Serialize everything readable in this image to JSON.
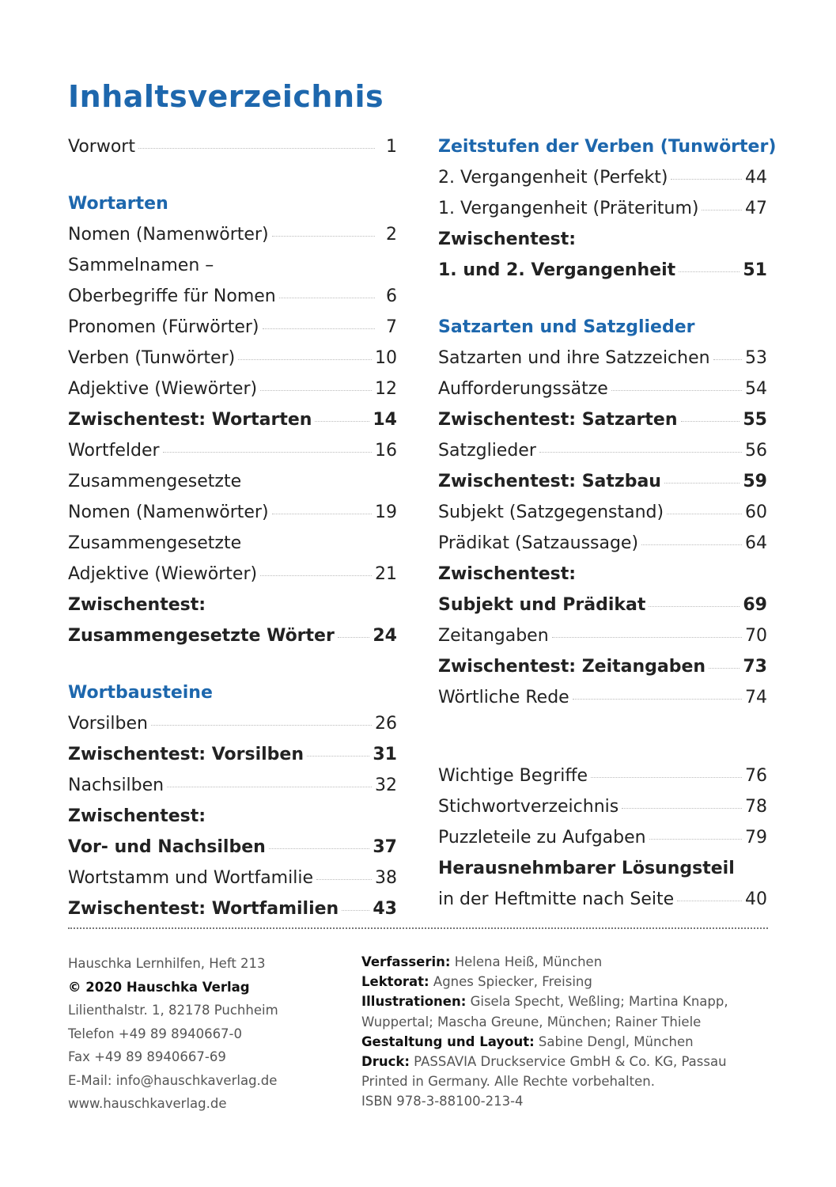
{
  "title": "Inhaltsverzeichnis",
  "columns": [
    [
      {
        "type": "entry",
        "lines": [
          "Vorwort"
        ],
        "page": "1"
      },
      {
        "type": "gap",
        "size": "small"
      },
      {
        "type": "heading",
        "text": "Wortarten"
      },
      {
        "type": "entry",
        "lines": [
          "Nomen (Namenwörter)"
        ],
        "page": "2"
      },
      {
        "type": "entry",
        "lines": [
          "Sammelnamen –",
          "Oberbegriffe für Nomen"
        ],
        "page": "6"
      },
      {
        "type": "entry",
        "lines": [
          "Pronomen (Fürwörter)"
        ],
        "page": "7"
      },
      {
        "type": "entry",
        "lines": [
          "Verben (Tunwörter)"
        ],
        "page": "10"
      },
      {
        "type": "entry",
        "lines": [
          "Adjektive (Wiewörter)"
        ],
        "page": "12"
      },
      {
        "type": "entry",
        "lines": [
          "Zwischentest: Wortarten"
        ],
        "page": "14",
        "bold": true
      },
      {
        "type": "entry",
        "lines": [
          "Wortfelder"
        ],
        "page": "16"
      },
      {
        "type": "entry",
        "lines": [
          "Zusammengesetzte",
          "Nomen (Namenwörter)"
        ],
        "page": "19"
      },
      {
        "type": "entry",
        "lines": [
          "Zusammengesetzte",
          "Adjektive (Wiewörter)"
        ],
        "page": "21"
      },
      {
        "type": "entry",
        "lines": [
          "Zwischentest:",
          "Zusammengesetzte Wörter"
        ],
        "page": "24",
        "bold": true
      },
      {
        "type": "gap",
        "size": "small"
      },
      {
        "type": "heading",
        "text": "Wortbausteine"
      },
      {
        "type": "entry",
        "lines": [
          "Vorsilben"
        ],
        "page": "26"
      },
      {
        "type": "entry",
        "lines": [
          "Zwischentest: Vorsilben"
        ],
        "page": "31",
        "bold": true
      },
      {
        "type": "entry",
        "lines": [
          "Nachsilben"
        ],
        "page": "32"
      },
      {
        "type": "entry",
        "lines": [
          "Zwischentest:",
          "Vor- und Nachsilben"
        ],
        "page": "37",
        "bold": true
      },
      {
        "type": "entry",
        "lines": [
          "Wortstamm und Wortfamilie"
        ],
        "page": "38"
      },
      {
        "type": "entry",
        "lines": [
          "Zwischentest: Wortfamilien"
        ],
        "page": "43",
        "bold": true
      }
    ],
    [
      {
        "type": "heading",
        "text": "Zeitstufen der Verben (Tunwörter)"
      },
      {
        "type": "entry",
        "lines": [
          "2. Vergangenheit (Perfekt)"
        ],
        "page": "44"
      },
      {
        "type": "entry",
        "lines": [
          "1. Vergangenheit (Präteritum)"
        ],
        "page": "47"
      },
      {
        "type": "entry",
        "lines": [
          "Zwischentest:",
          "1. und 2. Vergangenheit"
        ],
        "page": "51",
        "bold": true
      },
      {
        "type": "gap",
        "size": "small"
      },
      {
        "type": "heading",
        "text": "Satzarten und Satzglieder"
      },
      {
        "type": "entry",
        "lines": [
          "Satzarten und ihre Satzzeichen"
        ],
        "page": "53"
      },
      {
        "type": "entry",
        "lines": [
          "Aufforderungssätze"
        ],
        "page": "54"
      },
      {
        "type": "entry",
        "lines": [
          "Zwischentest: Satzarten"
        ],
        "page": "55",
        "bold": true
      },
      {
        "type": "entry",
        "lines": [
          "Satzglieder"
        ],
        "page": "56"
      },
      {
        "type": "entry",
        "lines": [
          "Zwischentest: Satzbau"
        ],
        "page": "59",
        "bold": true
      },
      {
        "type": "entry",
        "lines": [
          "Subjekt (Satzgegenstand)"
        ],
        "page": "60"
      },
      {
        "type": "entry",
        "lines": [
          "Prädikat (Satzaussage)"
        ],
        "page": "64"
      },
      {
        "type": "entry",
        "lines": [
          "Zwischentest:",
          "Subjekt und Prädikat"
        ],
        "page": "69",
        "bold": true
      },
      {
        "type": "entry",
        "lines": [
          "Zeitangaben"
        ],
        "page": "70"
      },
      {
        "type": "entry",
        "lines": [
          "Zwischentest: Zeitangaben"
        ],
        "page": "73",
        "bold": true
      },
      {
        "type": "entry",
        "lines": [
          "Wörtliche Rede"
        ],
        "page": "74"
      },
      {
        "type": "gap",
        "size": "large"
      },
      {
        "type": "entry",
        "lines": [
          "Wichtige Begriffe"
        ],
        "page": "76"
      },
      {
        "type": "entry",
        "lines": [
          "Stichwortverzeichnis"
        ],
        "page": "78"
      },
      {
        "type": "entry",
        "lines": [
          "Puzzleteile zu Aufgaben"
        ],
        "page": "79"
      },
      {
        "type": "entry",
        "lines": [
          "Herausnehmbarer Lösungsteil",
          "in der Heftmitte nach Seite"
        ],
        "page": "40",
        "boldFirst": true
      }
    ]
  ],
  "footer": {
    "left": [
      {
        "text": "Hauschka Lernhilfen, Heft 213"
      },
      {
        "text": "© 2020 Hauschka Verlag",
        "bold": true
      },
      {
        "text": "Lilienthalstr. 1, 82178 Puchheim"
      },
      {
        "text": "Telefon +49 89 8940667-0"
      },
      {
        "text": "Fax +49 89 8940667-69"
      },
      {
        "text": "E-Mail: info@hauschkaverlag.de"
      },
      {
        "text": "www.hauschkaverlag.de"
      }
    ],
    "right": [
      {
        "label": "Verfasserin:",
        "text": " Helena Heiß, München"
      },
      {
        "label": "Lektorat:",
        "text": " Agnes Spiecker, Freising"
      },
      {
        "label": "Illustrationen:",
        "text": " Gisela Specht, Weßling; Martina Knapp,"
      },
      {
        "label": "",
        "text": "Wuppertal;  Mascha Greune, München; Rainer Thiele"
      },
      {
        "label": "Gestaltung und Layout:",
        "text": " Sabine Dengl, München"
      },
      {
        "label": "Druck:",
        "text": " PASSAVIA Druckservice GmbH & Co. KG, Passau"
      },
      {
        "label": "",
        "text": "Printed in Germany. Alle Rechte vorbehalten."
      },
      {
        "label": "",
        "text": "ISBN 978-3-88100-213-4"
      }
    ]
  }
}
